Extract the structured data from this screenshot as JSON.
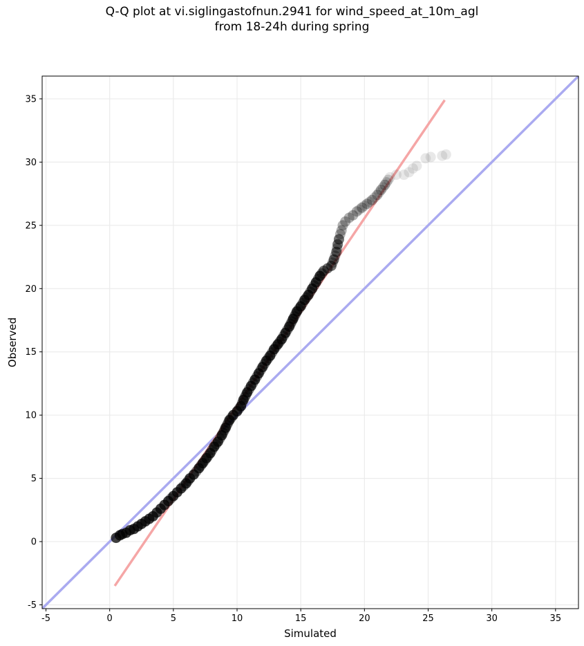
{
  "chart_data": {
    "type": "scatter",
    "title": "Q-Q plot at vi.siglingastofnun.2941 for wind_speed_at_10m_agl",
    "subtitle": "from 18-24h during spring",
    "xlabel": "Simulated",
    "ylabel": "Observed",
    "xlim": [
      -5.3,
      36.8
    ],
    "ylim": [
      -5.3,
      36.8
    ],
    "xticks": [
      -5,
      0,
      5,
      10,
      15,
      20,
      25,
      30,
      35
    ],
    "yticks": [
      -5,
      0,
      5,
      10,
      15,
      20,
      25,
      30,
      35
    ],
    "grid": true,
    "legend": "none",
    "colors": {
      "points": "#000000",
      "identity_line": "#aaaaf0",
      "fit_line": "#f5a6a6",
      "axes": "#000000",
      "grid": "#ebebeb"
    },
    "series": [
      {
        "kind": "quantiles",
        "points": [
          [
            0.5,
            0.3
          ],
          [
            0.8,
            0.5
          ],
          [
            1.0,
            0.6
          ],
          [
            1.3,
            0.7
          ],
          [
            1.6,
            0.9
          ],
          [
            1.9,
            1.0
          ],
          [
            2.2,
            1.2
          ],
          [
            2.5,
            1.4
          ],
          [
            2.8,
            1.6
          ],
          [
            3.1,
            1.8
          ],
          [
            3.4,
            2.0
          ],
          [
            3.7,
            2.3
          ],
          [
            4.0,
            2.6
          ],
          [
            4.3,
            2.9
          ],
          [
            4.6,
            3.2
          ],
          [
            5.0,
            3.6
          ],
          [
            5.3,
            3.9
          ],
          [
            5.6,
            4.2
          ],
          [
            6.0,
            4.6
          ],
          [
            6.3,
            5.0
          ],
          [
            6.6,
            5.3
          ],
          [
            7.0,
            5.8
          ],
          [
            7.3,
            6.2
          ],
          [
            7.6,
            6.6
          ],
          [
            7.9,
            7.0
          ],
          [
            8.2,
            7.5
          ],
          [
            8.5,
            7.9
          ],
          [
            8.8,
            8.4
          ],
          [
            9.1,
            9.0
          ],
          [
            9.4,
            9.6
          ],
          [
            9.7,
            10.0
          ],
          [
            10.0,
            10.3
          ],
          [
            10.3,
            10.7
          ],
          [
            10.5,
            11.2
          ],
          [
            10.8,
            11.8
          ],
          [
            11.1,
            12.3
          ],
          [
            11.4,
            12.8
          ],
          [
            11.7,
            13.3
          ],
          [
            12.0,
            13.8
          ],
          [
            12.3,
            14.3
          ],
          [
            12.6,
            14.7
          ],
          [
            12.9,
            15.2
          ],
          [
            13.2,
            15.6
          ],
          [
            13.5,
            16.0
          ],
          [
            13.8,
            16.5
          ],
          [
            14.1,
            17.0
          ],
          [
            14.4,
            17.6
          ],
          [
            14.7,
            18.2
          ],
          [
            15.0,
            18.6
          ],
          [
            15.3,
            19.1
          ],
          [
            15.6,
            19.5
          ],
          [
            15.9,
            20.0
          ],
          [
            16.2,
            20.5
          ],
          [
            16.5,
            21.0
          ],
          [
            16.8,
            21.4
          ],
          [
            17.1,
            21.6
          ],
          [
            17.4,
            21.8
          ],
          [
            17.6,
            22.3
          ],
          [
            17.8,
            22.9
          ],
          [
            17.9,
            23.5
          ],
          [
            18.0,
            23.9
          ],
          [
            18.1,
            24.3
          ],
          [
            18.2,
            24.6
          ],
          [
            18.3,
            25.0
          ],
          [
            18.5,
            25.3
          ],
          [
            18.8,
            25.6
          ],
          [
            19.1,
            25.8
          ],
          [
            19.4,
            26.1
          ],
          [
            19.8,
            26.4
          ],
          [
            20.2,
            26.7
          ],
          [
            20.6,
            27.0
          ],
          [
            21.0,
            27.4
          ],
          [
            21.3,
            27.8
          ],
          [
            21.6,
            28.2
          ],
          [
            22.0,
            28.8
          ],
          [
            22.5,
            29.0
          ],
          [
            23.1,
            29.0
          ],
          [
            23.5,
            29.2
          ],
          [
            23.8,
            29.5
          ],
          [
            24.1,
            29.7
          ],
          [
            24.8,
            30.3
          ],
          [
            25.2,
            30.4
          ],
          [
            26.1,
            30.5
          ],
          [
            26.4,
            30.6
          ]
        ]
      },
      {
        "kind": "identity_line",
        "points": [
          [
            -5.3,
            -5.3
          ],
          [
            36.8,
            36.8
          ]
        ]
      },
      {
        "kind": "fit_line",
        "points": [
          [
            0.4,
            -3.5
          ],
          [
            26.3,
            34.9
          ]
        ]
      }
    ]
  }
}
